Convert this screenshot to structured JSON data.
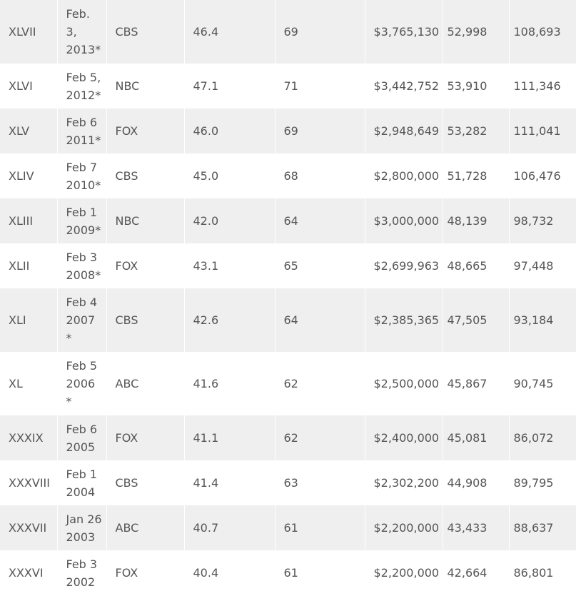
{
  "table": {
    "rows": [
      [
        "XLVII",
        [
          "Feb.",
          "3,",
          "2013*"
        ],
        "CBS",
        "46.4",
        "69",
        "$3,765,130",
        "52,998",
        "108,693"
      ],
      [
        "XLVI",
        [
          "Feb 5,",
          "2012*"
        ],
        "NBC",
        "47.1",
        "71",
        "$3,442,752",
        "53,910",
        "111,346"
      ],
      [
        "XLV",
        [
          "Feb 6",
          "2011*"
        ],
        "FOX",
        "46.0",
        "69",
        "$2,948,649",
        "53,282",
        "111,041"
      ],
      [
        "XLIV",
        [
          "Feb 7",
          "2010*"
        ],
        "CBS",
        "45.0",
        "68",
        "$2,800,000",
        "51,728",
        "106,476"
      ],
      [
        "XLIII",
        [
          "Feb 1",
          "2009*"
        ],
        "NBC",
        "42.0",
        "64",
        "$3,000,000",
        "48,139",
        "98,732"
      ],
      [
        "XLII",
        [
          "Feb 3",
          "2008*"
        ],
        "FOX",
        "43.1",
        "65",
        "$2,699,963",
        "48,665",
        "97,448"
      ],
      [
        "XLI",
        [
          "Feb 4",
          "2007",
          "*"
        ],
        "CBS",
        "42.6",
        "64",
        "$2,385,365",
        "47,505",
        "93,184"
      ],
      [
        "XL",
        [
          "Feb 5",
          "2006",
          "*"
        ],
        "ABC",
        "41.6",
        "62",
        "$2,500,000",
        "45,867",
        "90,745"
      ],
      [
        "XXXIX",
        [
          "Feb 6",
          "2005"
        ],
        "FOX",
        "41.1",
        "62",
        "$2,400,000",
        "45,081",
        "86,072"
      ],
      [
        "XXXVIII",
        [
          "Feb 1",
          "2004"
        ],
        "CBS",
        "41.4",
        "63",
        "$2,302,200",
        "44,908",
        "89,795"
      ],
      [
        "XXXVII",
        [
          "Jan 26",
          "2003"
        ],
        "ABC",
        "40.7",
        "61",
        "$2,200,000",
        "43,433",
        "88,637"
      ],
      [
        "XXXVI",
        [
          "Feb 3",
          "2002"
        ],
        "FOX",
        "40.4",
        "61",
        "$2,200,000",
        "42,664",
        "86,801"
      ]
    ]
  }
}
